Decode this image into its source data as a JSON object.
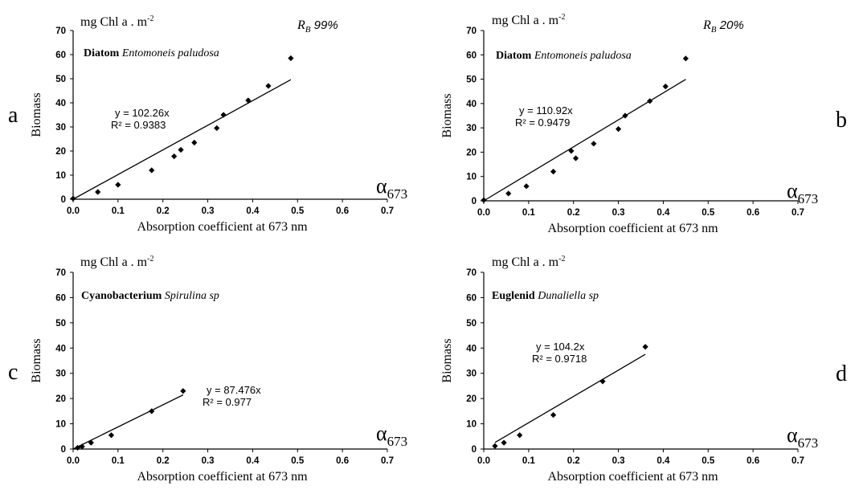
{
  "chart_data": [
    {
      "type": "scatter",
      "panel_letter": "a",
      "unit_label": "mg Chl a . m",
      "unit_exp": "-2",
      "rb_symbol": "R",
      "rb_sub": "B",
      "rb_value": "99%",
      "group": "Diatom",
      "species": "Entomoneis paludosa",
      "xlabel": "Absorption coefficient at 673 nm",
      "ylabel": "Biomass",
      "alpha_symbol": "α",
      "alpha_sub": "673",
      "xlim": [
        0,
        0.7
      ],
      "ylim": [
        0,
        70
      ],
      "xticks": [
        "0.0",
        "0.1",
        "0.2",
        "0.3",
        "0.4",
        "0.5",
        "0.6",
        "0.7"
      ],
      "yticks": [
        "0",
        "10",
        "20",
        "30",
        "40",
        "50",
        "60",
        "70"
      ],
      "x": [
        0.0,
        0.055,
        0.1,
        0.175,
        0.225,
        0.24,
        0.27,
        0.32,
        0.335,
        0.39,
        0.435,
        0.485
      ],
      "y": [
        0.3,
        3,
        6,
        12,
        17.8,
        20.5,
        23.5,
        29.5,
        35,
        41,
        47,
        58.5
      ],
      "fit_slope": 102.26,
      "fit_x_range": [
        0,
        0.485
      ],
      "equation": "y = 102.26x",
      "r2": "R² = 0.9383"
    },
    {
      "type": "scatter",
      "panel_letter": "b",
      "unit_label": "mg Chl a . m",
      "unit_exp": "-2",
      "rb_symbol": "R",
      "rb_sub": "B",
      "rb_value": "20%",
      "group": "Diatom",
      "species": "Entomoneis paludosa",
      "xlabel": "Absorption coefficient at 673 nm",
      "ylabel": "Biomass",
      "alpha_symbol": "α",
      "alpha_sub": "673",
      "xlim": [
        0,
        0.7
      ],
      "ylim": [
        0,
        70
      ],
      "xticks": [
        "0.0",
        "0.1",
        "0.2",
        "0.3",
        "0.4",
        "0.5",
        "0.6",
        "0.7"
      ],
      "yticks": [
        "0",
        "10",
        "20",
        "30",
        "40",
        "50",
        "60",
        "70"
      ],
      "x": [
        0.0,
        0.055,
        0.095,
        0.155,
        0.195,
        0.205,
        0.245,
        0.3,
        0.315,
        0.37,
        0.405,
        0.45
      ],
      "y": [
        0.3,
        3,
        6,
        12,
        20.5,
        17.5,
        23.5,
        29.5,
        35,
        41,
        47,
        58.5
      ],
      "fit_slope": 110.92,
      "fit_x_range": [
        0,
        0.45
      ],
      "equation": "y = 110.92x",
      "r2": "R² = 0.9479"
    },
    {
      "type": "scatter",
      "panel_letter": "c",
      "unit_label": "mg Chl a . m",
      "unit_exp": "-2",
      "group": "Cyanobacterium",
      "species": "Spirulina sp",
      "xlabel": "Absorption coefficient at 673 nm",
      "ylabel": "Biomass",
      "alpha_symbol": "α",
      "alpha_sub": "673",
      "xlim": [
        0,
        0.7
      ],
      "ylim": [
        0,
        70
      ],
      "xticks": [
        "0.0",
        "0.1",
        "0.2",
        "0.3",
        "0.4",
        "0.5",
        "0.6",
        "0.7"
      ],
      "yticks": [
        "0",
        "10",
        "20",
        "30",
        "40",
        "50",
        "60",
        "70"
      ],
      "x": [
        0.01,
        0.02,
        0.04,
        0.085,
        0.175,
        0.245
      ],
      "y": [
        0.5,
        1,
        2.5,
        5.5,
        15,
        23
      ],
      "fit_slope": 87.476,
      "fit_x_range": [
        0,
        0.245
      ],
      "equation": "y = 87.476x",
      "r2": "R² = 0.977"
    },
    {
      "type": "scatter",
      "panel_letter": "d",
      "unit_label": "mg Chl a . m",
      "unit_exp": "-2",
      "group": "Euglenid",
      "species": "Dunaliella sp",
      "xlabel": "Absorption coefficient at 673 nm",
      "ylabel": "Biomass",
      "alpha_symbol": "α",
      "alpha_sub": "673",
      "xlim": [
        0,
        0.7
      ],
      "ylim": [
        0,
        70
      ],
      "xticks": [
        "0.0",
        "0.1",
        "0.2",
        "0.3",
        "0.4",
        "0.5",
        "0.6",
        "0.7"
      ],
      "yticks": [
        "0",
        "10",
        "20",
        "30",
        "40",
        "50",
        "60",
        "70"
      ],
      "x": [
        0.025,
        0.045,
        0.08,
        0.155,
        0.265,
        0.36
      ],
      "y": [
        1.2,
        2.5,
        5.5,
        13.5,
        26.8,
        40.5
      ],
      "fit_slope": 104.2,
      "fit_x_range": [
        0.025,
        0.36
      ],
      "equation": "y = 104.2x",
      "r2": "R² = 0.9718"
    }
  ]
}
